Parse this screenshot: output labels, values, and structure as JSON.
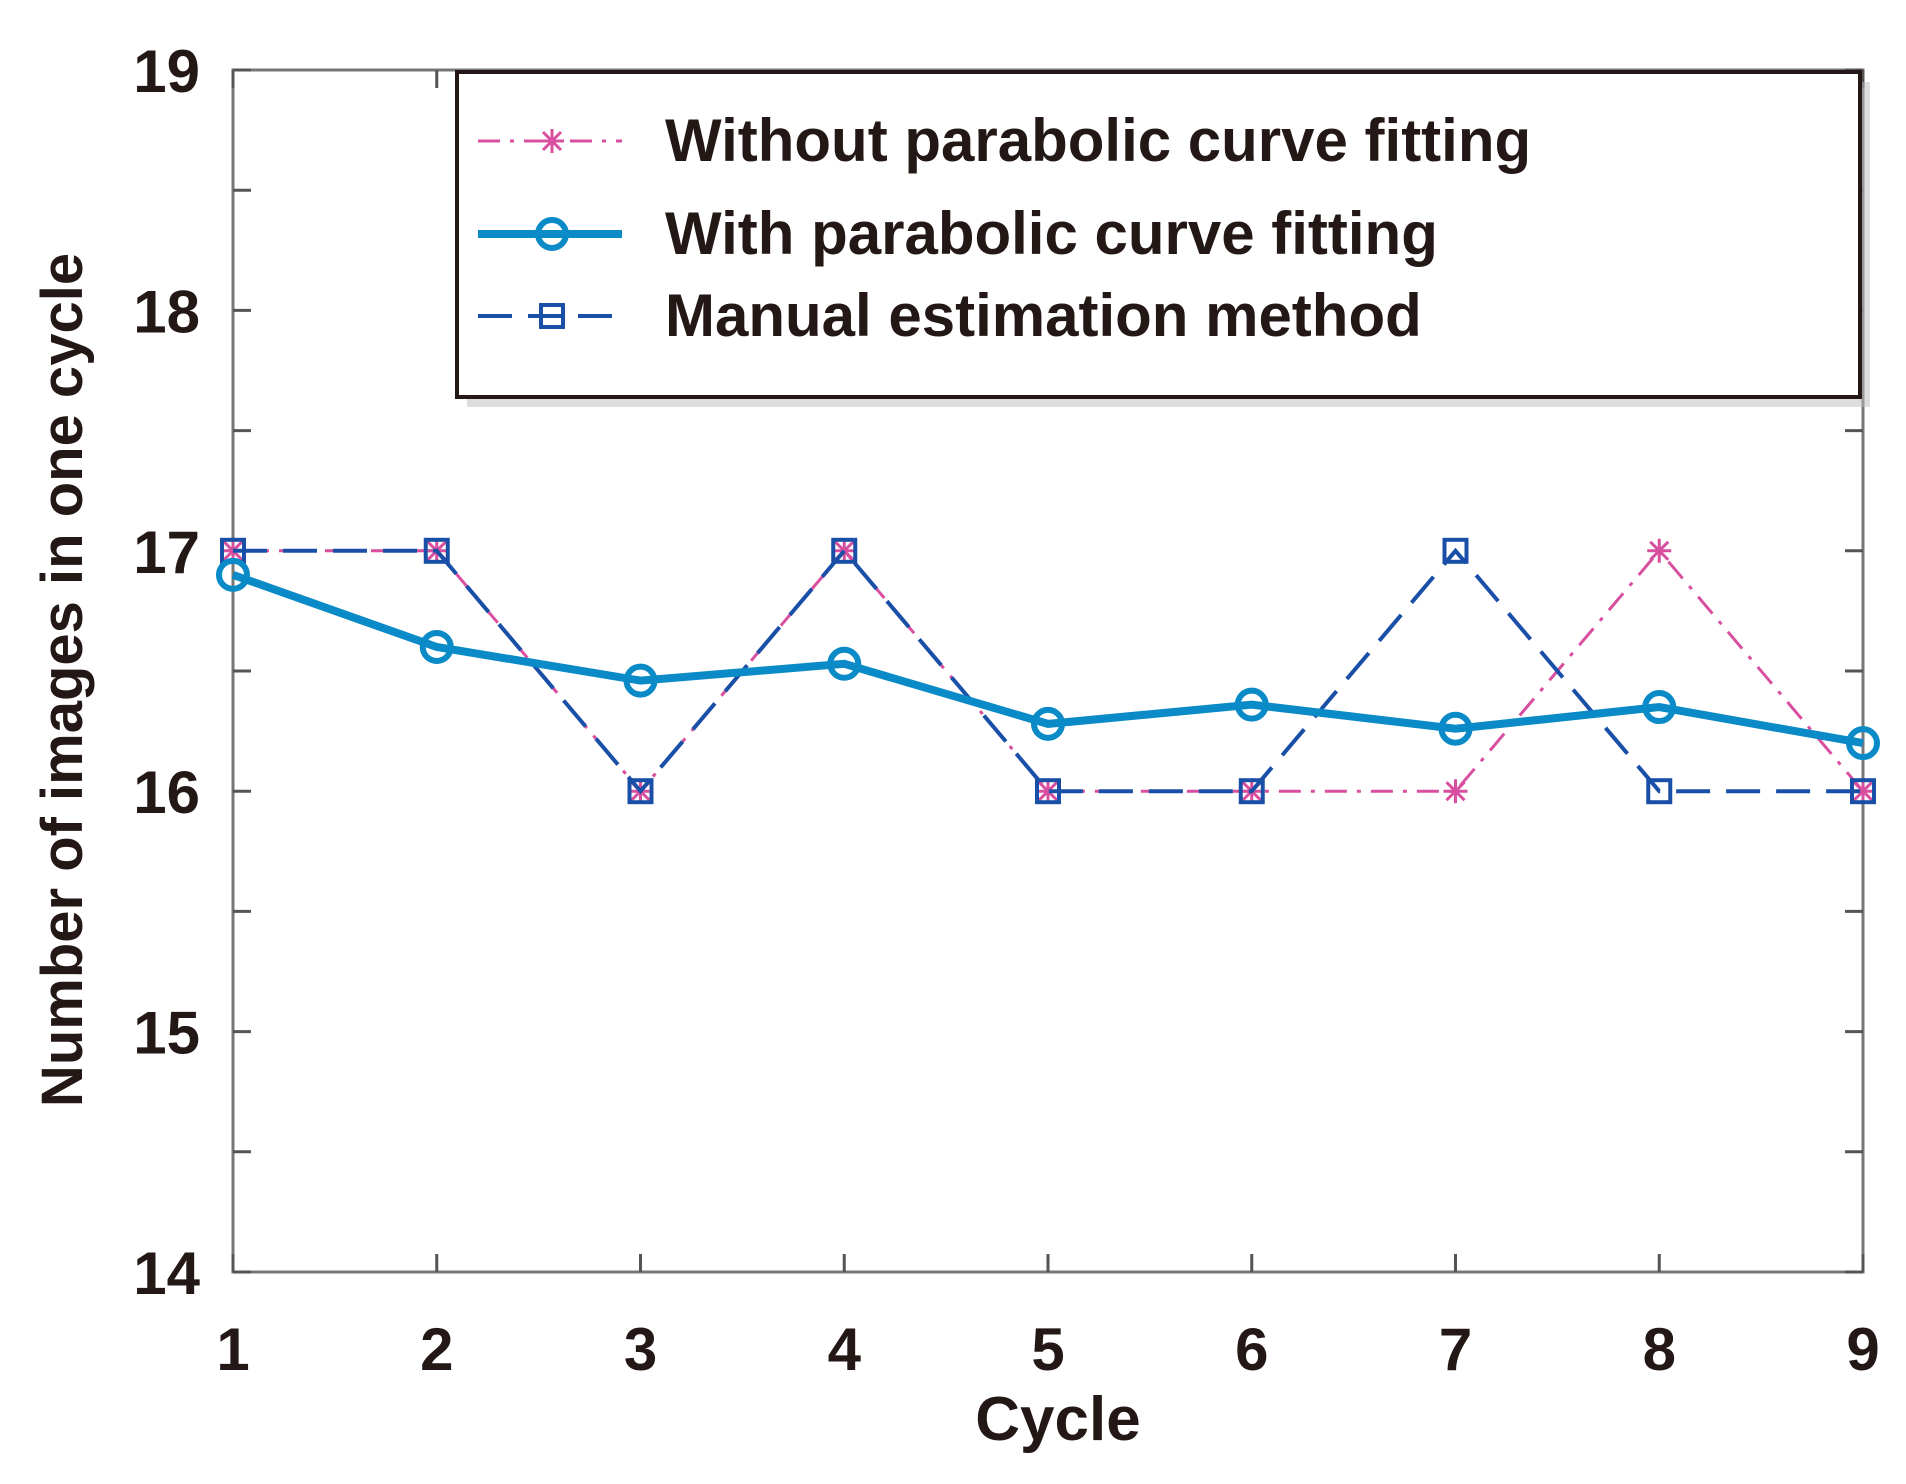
{
  "chart_data": {
    "type": "line",
    "title": "",
    "xlabel": "Cycle",
    "ylabel": "Number of  images in one cycle",
    "x": [
      1,
      2,
      3,
      4,
      5,
      6,
      7,
      8,
      9
    ],
    "xlim": [
      1,
      9
    ],
    "ylim": [
      14,
      19
    ],
    "xticks": [
      "1",
      "2",
      "3",
      "4",
      "5",
      "6",
      "7",
      "8",
      "9"
    ],
    "yticks": [
      "14",
      "15",
      "16",
      "17",
      "18",
      "19"
    ],
    "grid": false,
    "legend_position": "top-right",
    "series": [
      {
        "name": "Without parabolic curve fitting",
        "color": "#d94fa0",
        "style": "dashdot",
        "marker": "asterisk",
        "values": [
          17,
          17,
          16,
          17,
          16,
          16,
          16,
          17,
          16
        ]
      },
      {
        "name": "With parabolic curve fitting",
        "color": "#0a8ac6",
        "style": "solid",
        "marker": "circle",
        "values": [
          16.9,
          16.6,
          16.46,
          16.53,
          16.28,
          16.36,
          16.26,
          16.35,
          16.2
        ]
      },
      {
        "name": "Manual estimation method",
        "color": "#1a4fa8",
        "style": "dashed",
        "marker": "square",
        "values": [
          17,
          17,
          16,
          17,
          16,
          16,
          17,
          16,
          16
        ]
      }
    ]
  }
}
